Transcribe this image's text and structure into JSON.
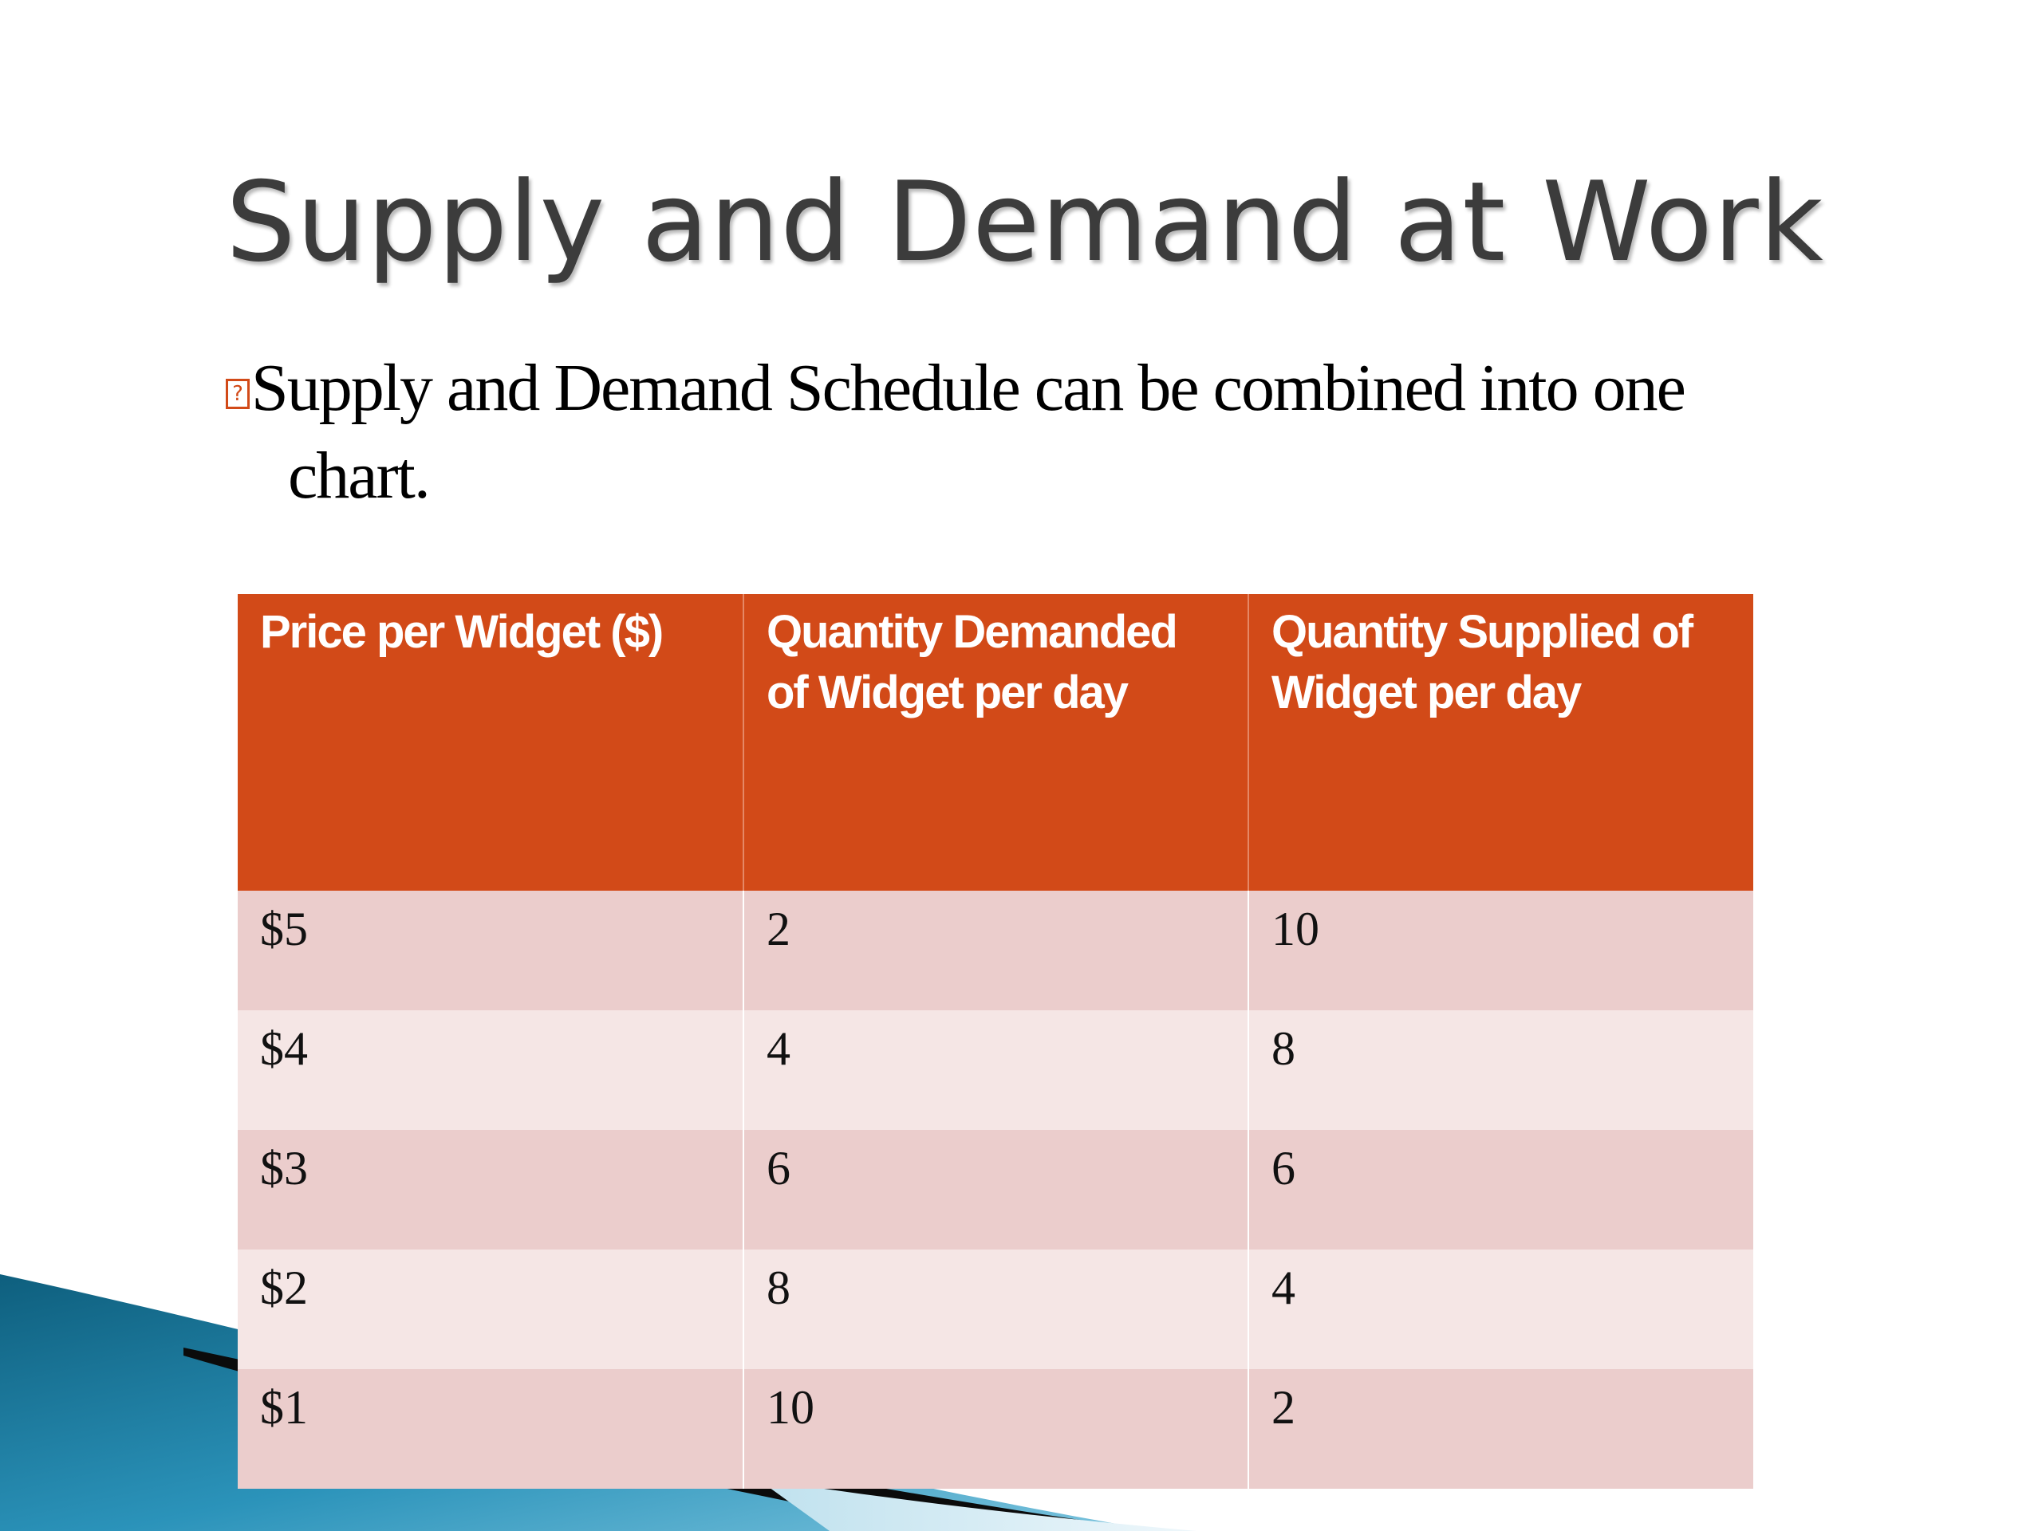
{
  "slide": {
    "title": "Supply and Demand at Work",
    "bullet": {
      "marker_glyph": "?",
      "line1": "Supply and Demand Schedule can be combined into one",
      "line2": "chart."
    }
  },
  "colors": {
    "header_bg": "#d24a18",
    "row_odd_bg": "#ebcdcc",
    "row_even_bg": "#f5e6e5",
    "title_text": "#3c3c3c"
  },
  "table": {
    "headers": [
      "Price per Widget ($)",
      "Quantity Demanded of Widget per day",
      "Quantity Supplied of Widget per day"
    ],
    "rows": [
      [
        "$5",
        "2",
        "10"
      ],
      [
        "$4",
        "4",
        "8"
      ],
      [
        "$3",
        "6",
        "6"
      ],
      [
        "$2",
        "8",
        "4"
      ],
      [
        "$1",
        "10",
        "2"
      ]
    ]
  }
}
